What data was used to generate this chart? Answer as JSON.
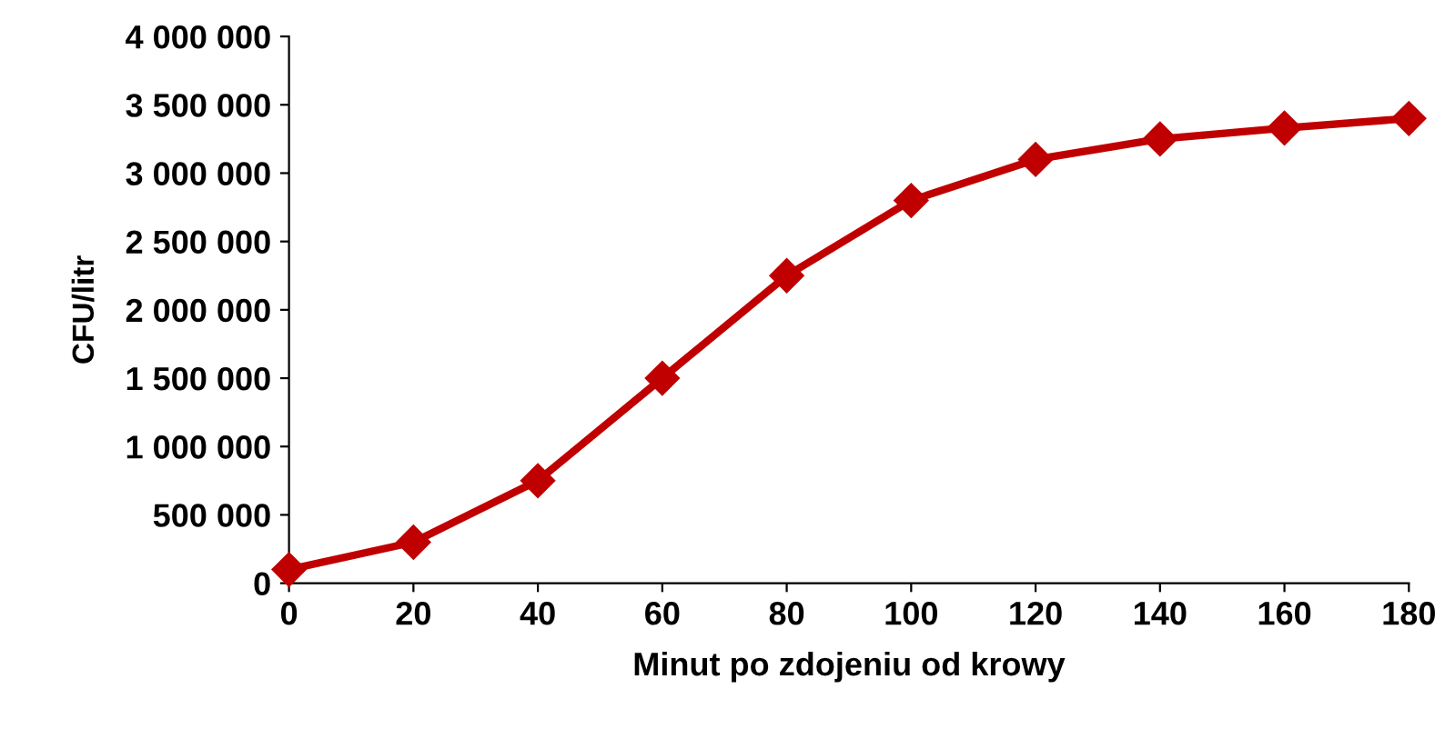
{
  "chart_data": {
    "type": "line",
    "xlabel": "Minut po zdojeniu od krowy",
    "ylabel": "CFU/litr",
    "x": [
      0,
      20,
      40,
      60,
      80,
      100,
      120,
      140,
      160,
      180
    ],
    "series": [
      {
        "color": "#c00000",
        "values": [
          100000,
          300000,
          750000,
          1500000,
          2250000,
          2800000,
          3100000,
          3250000,
          3330000,
          3400000
        ]
      }
    ],
    "xlim": [
      0,
      180
    ],
    "xticks": [
      0,
      20,
      40,
      60,
      80,
      100,
      120,
      140,
      160,
      180
    ],
    "ylim": [
      0,
      4000000
    ],
    "yticks": [
      0,
      {
        "value": 500000,
        "label": "500 000"
      },
      {
        "value": 1000000,
        "label": "1 000 000"
      },
      {
        "value": 1500000,
        "label": "1 500 000"
      },
      {
        "value": 2000000,
        "label": "2 000 000"
      },
      {
        "value": 2500000,
        "label": "2 500 000"
      },
      {
        "value": 3000000,
        "label": "3 000 000"
      },
      {
        "value": 3500000,
        "label": "3 500 000"
      },
      {
        "value": 4000000,
        "label": "4 000 000"
      }
    ],
    "marker": "diamond",
    "line_style": "solid",
    "grid": false,
    "legend": false
  }
}
